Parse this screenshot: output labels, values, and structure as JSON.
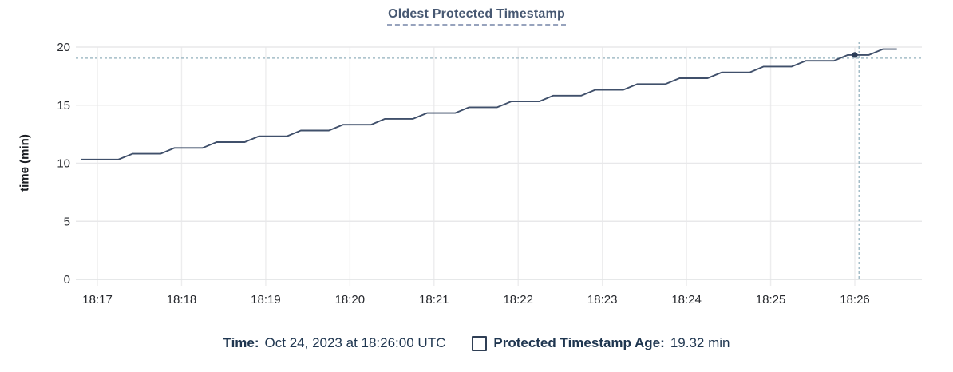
{
  "header": {
    "title": "Oldest Protected Timestamp"
  },
  "chart_data": {
    "type": "line",
    "title": "Oldest Protected Timestamp",
    "xlabel": "",
    "ylabel": "time (min)",
    "ylim": [
      0,
      20
    ],
    "y_ticks": [
      0,
      5,
      10,
      15,
      20
    ],
    "x_ticks": [
      "18:17",
      "18:18",
      "18:19",
      "18:20",
      "18:21",
      "18:22",
      "18:23",
      "18:24",
      "18:25",
      "18:26"
    ],
    "grid": true,
    "legend_position": "bottom-center",
    "series": [
      {
        "name": "Protected Timestamp Age",
        "unit": "min",
        "color": "#40506b",
        "points": [
          [
            "18:16:48",
            10.32
          ],
          [
            "18:17:15",
            10.32
          ],
          [
            "18:17:25",
            10.82
          ],
          [
            "18:17:45",
            10.82
          ],
          [
            "18:17:55",
            11.32
          ],
          [
            "18:18:15",
            11.32
          ],
          [
            "18:18:25",
            11.82
          ],
          [
            "18:18:45",
            11.82
          ],
          [
            "18:18:55",
            12.32
          ],
          [
            "18:19:15",
            12.32
          ],
          [
            "18:19:25",
            12.82
          ],
          [
            "18:19:45",
            12.82
          ],
          [
            "18:19:55",
            13.32
          ],
          [
            "18:20:15",
            13.32
          ],
          [
            "18:20:25",
            13.82
          ],
          [
            "18:20:45",
            13.82
          ],
          [
            "18:20:55",
            14.32
          ],
          [
            "18:21:15",
            14.32
          ],
          [
            "18:21:25",
            14.82
          ],
          [
            "18:21:45",
            14.82
          ],
          [
            "18:21:55",
            15.32
          ],
          [
            "18:22:15",
            15.32
          ],
          [
            "18:22:25",
            15.82
          ],
          [
            "18:22:45",
            15.82
          ],
          [
            "18:22:55",
            16.32
          ],
          [
            "18:23:15",
            16.32
          ],
          [
            "18:23:25",
            16.82
          ],
          [
            "18:23:45",
            16.82
          ],
          [
            "18:23:55",
            17.32
          ],
          [
            "18:24:15",
            17.32
          ],
          [
            "18:24:25",
            17.82
          ],
          [
            "18:24:45",
            17.82
          ],
          [
            "18:24:55",
            18.32
          ],
          [
            "18:25:15",
            18.32
          ],
          [
            "18:25:25",
            18.82
          ],
          [
            "18:25:45",
            18.82
          ],
          [
            "18:25:55",
            19.32
          ],
          [
            "18:26:10",
            19.32
          ],
          [
            "18:26:20",
            19.82
          ],
          [
            "18:26:30",
            19.82
          ]
        ]
      }
    ],
    "highlighted_point": {
      "time": "18:26:00",
      "value": 19.32
    },
    "crosshair": {
      "time": "18:26:03",
      "value": 19.05
    }
  },
  "legend": {
    "time_label": "Time:",
    "time_value": "Oct 24, 2023 at 18:26:00 UTC",
    "checkbox_checked": false,
    "series_label": "Protected Timestamp Age:",
    "series_value": "19.32 min"
  },
  "colors": {
    "background": "#ffffff",
    "title_text": "#475872",
    "title_underline": "#97a3bd",
    "series_line": "#40506b",
    "highlight_dot": "#2b3c57",
    "crosshair": "#a4bdc8",
    "h_gridline": "#e8e8ea",
    "v_gridline": "#ededee",
    "zero_line": "#e3e4e6",
    "tick_label": "#26282d",
    "axis_title": "#1a1d22",
    "legend_text": "#1f3650",
    "legend_swatch_border": "#2f3f55"
  }
}
